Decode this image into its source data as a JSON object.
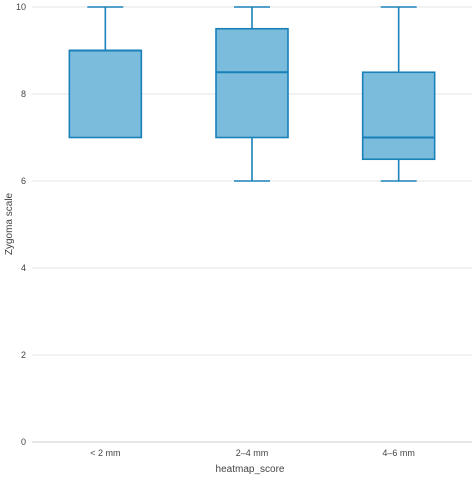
{
  "chart_data": {
    "type": "box",
    "xlabel": "heatmap_score",
    "ylabel": "Zygoma scale",
    "ylim": [
      0,
      10
    ],
    "yticks": [
      0,
      2,
      4,
      6,
      8,
      10
    ],
    "grid": true,
    "categories": [
      "< 2 mm",
      "2–4 mm",
      "4–6 mm"
    ],
    "boxes": [
      {
        "category": "< 2 mm",
        "min": 7,
        "q1": 7,
        "median": 9,
        "q3": 9,
        "max": 10
      },
      {
        "category": "2–4 mm",
        "min": 6,
        "q1": 7,
        "median": 8.5,
        "q3": 9.5,
        "max": 10
      },
      {
        "category": "4–6 mm",
        "min": 6,
        "q1": 6.5,
        "median": 7,
        "q3": 8.5,
        "max": 10
      }
    ],
    "colors": {
      "fill": "#7bbcdc",
      "stroke": "#1a80b8",
      "grid": "#e6e6e6",
      "axis": "#cccccc",
      "text": "#444444"
    }
  }
}
